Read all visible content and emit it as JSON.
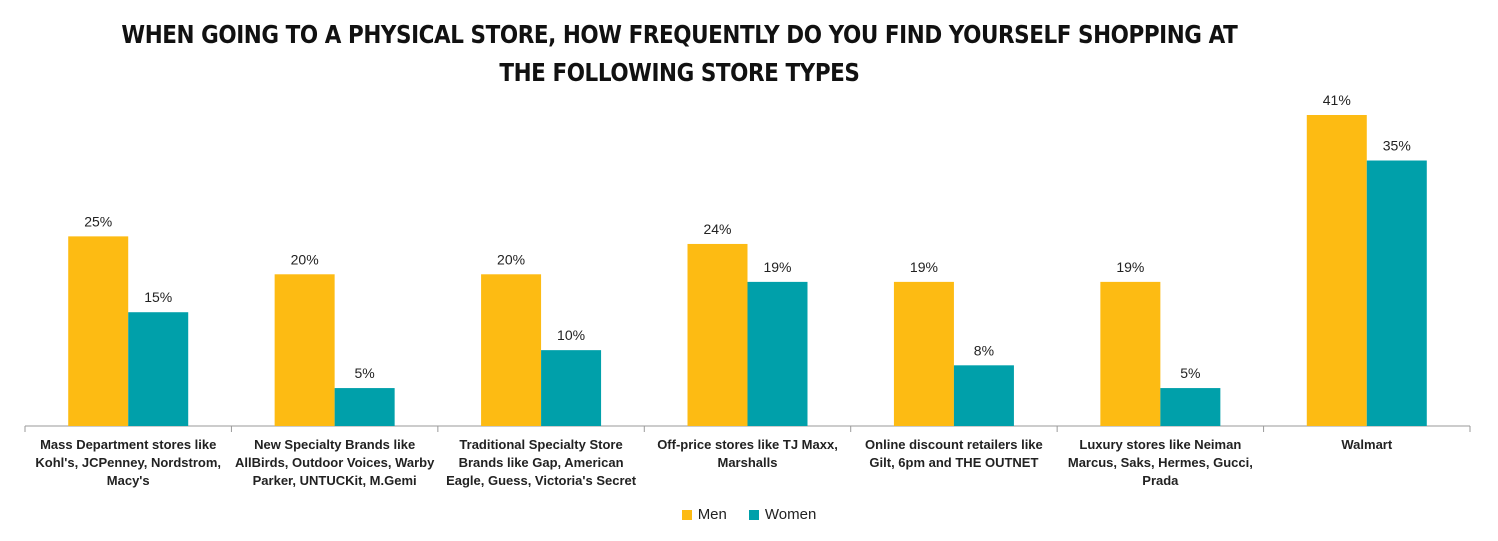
{
  "title_lines": [
    "WHEN GOING TO A PHYSICAL STORE, HOW FREQUENTLY DO YOU FIND YOURSELF SHOPPING AT",
    "THE FOLLOWING STORE TYPES"
  ],
  "colors": {
    "men": "#FDBB13",
    "women": "#00A0AA",
    "axis": "#9a9a9a"
  },
  "legend": {
    "men": "Men",
    "women": "Women"
  },
  "chart_data": {
    "type": "bar",
    "title": "WHEN GOING TO A PHYSICAL STORE, HOW FREQUENTLY DO YOU FIND YOURSELF SHOPPING AT THE FOLLOWING STORE TYPES",
    "categories": [
      [
        "Mass Department stores like",
        "Kohl's, JCPenney, Nordstrom,",
        "Macy's"
      ],
      [
        "New Specialty Brands like",
        "AllBirds, Outdoor Voices, Warby",
        "Parker, UNTUCKit, M.Gemi"
      ],
      [
        "Traditional Specialty Store",
        "Brands like Gap, American",
        "Eagle, Guess, Victoria's Secret"
      ],
      [
        "Off-price stores like TJ Maxx,",
        "Marshalls"
      ],
      [
        "Online discount retailers like",
        "Gilt, 6pm  and THE OUTNET"
      ],
      [
        "Luxury stores like Neiman",
        "Marcus, Saks, Hermes, Gucci,",
        "Prada"
      ],
      [
        "Walmart"
      ]
    ],
    "series": [
      {
        "name": "Men",
        "values": [
          25,
          20,
          20,
          24,
          19,
          19,
          41
        ],
        "labels": [
          "25%",
          "20%",
          "20%",
          "24%",
          "19%",
          "19%",
          "41%"
        ]
      },
      {
        "name": "Women",
        "values": [
          15,
          5,
          10,
          19,
          8,
          5,
          35
        ],
        "labels": [
          "15%",
          "5%",
          "10%",
          "19%",
          "8%",
          "5%",
          "35%"
        ]
      }
    ],
    "ylim": [
      0,
      41
    ],
    "grid": false,
    "legend_position": "bottom"
  }
}
